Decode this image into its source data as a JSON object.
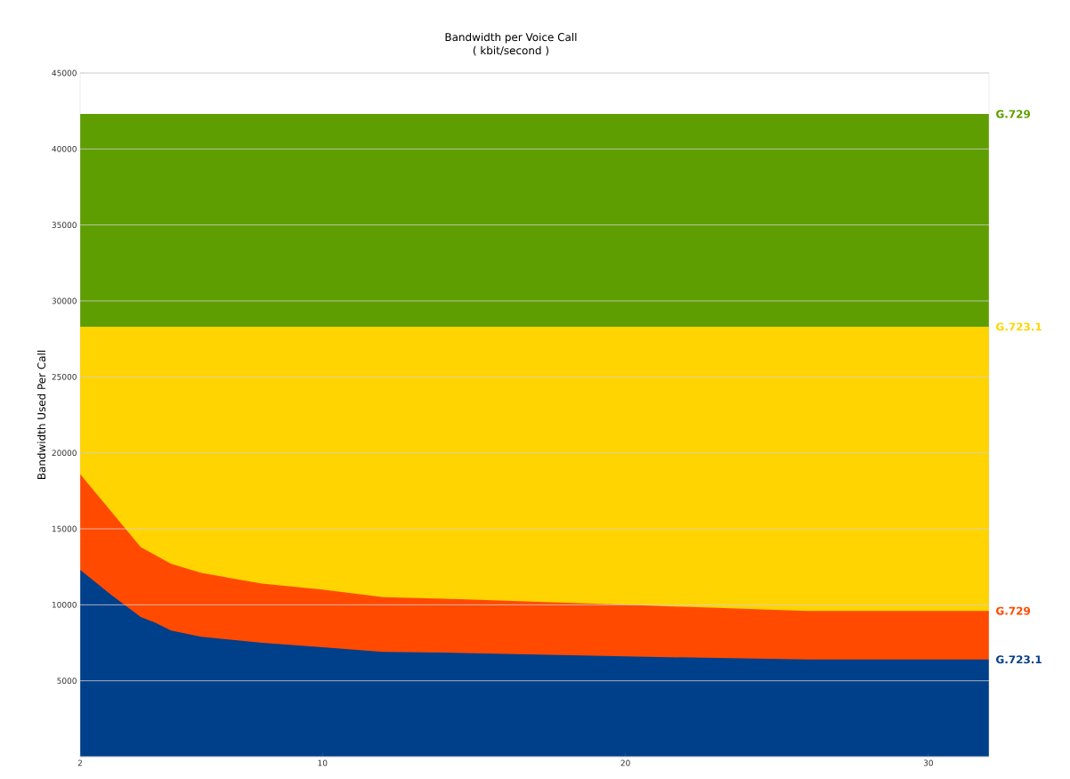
{
  "chart_data": {
    "type": "area",
    "title": "Bandwidth per Voice Call\n( kbit/second )",
    "ylabel": "Bandwidth Used Per Call",
    "xlim": [
      2,
      32
    ],
    "xticks": [
      2,
      10,
      20,
      30
    ],
    "ylim": [
      0,
      45000
    ],
    "yticks": [
      {
        "value": 0,
        "label": null
      },
      5000,
      10000,
      15000,
      20000,
      25000,
      30000,
      35000,
      40000,
      45000
    ],
    "grid": "y",
    "series": [
      {
        "name": "G.729",
        "color": "#5f9e00",
        "x": [
          2,
          32
        ],
        "values": [
          42300,
          42300
        ]
      },
      {
        "name": "G.723.1",
        "color": "#ffd400",
        "x": [
          2,
          32
        ],
        "values": [
          28300,
          28300
        ]
      },
      {
        "name": "G.729",
        "color": "#ff4a00",
        "x": [
          2,
          3,
          4,
          5,
          6,
          8,
          10,
          12,
          14,
          20,
          26,
          32
        ],
        "values": [
          18600,
          16200,
          13800,
          12700,
          12100,
          11400,
          11000,
          10500,
          10400,
          10000,
          9600,
          9600
        ]
      },
      {
        "name": "G.723.1",
        "color": "#003f8a",
        "x": [
          2,
          3,
          4,
          4.5,
          5,
          6,
          8,
          10,
          12,
          14,
          20,
          26,
          32
        ],
        "values": [
          12300,
          10700,
          9200,
          8800,
          8300,
          7900,
          7500,
          7200,
          6900,
          6850,
          6600,
          6400,
          6400
        ]
      }
    ]
  }
}
